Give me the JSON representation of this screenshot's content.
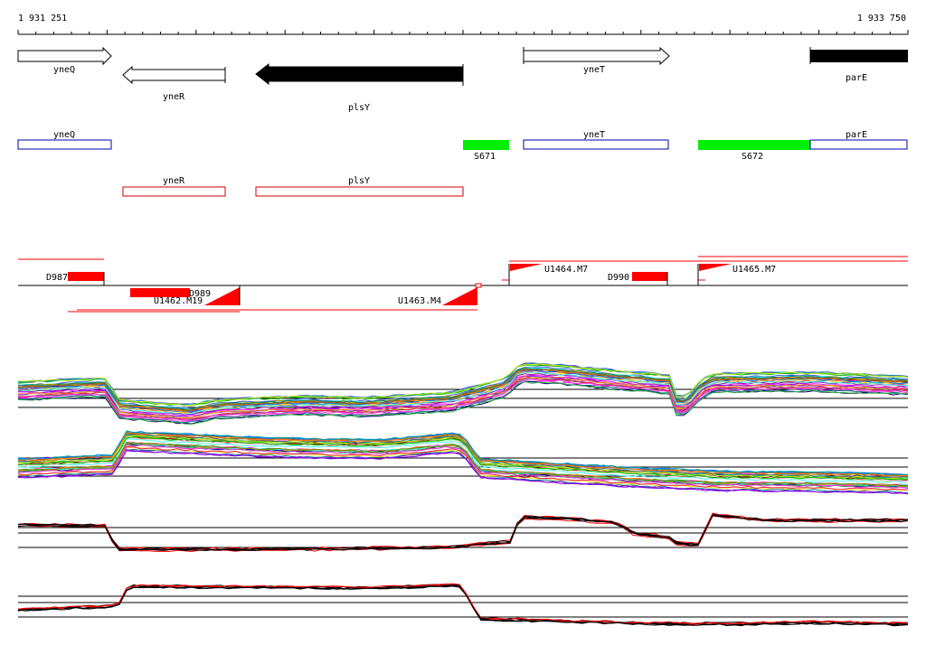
{
  "ruler": {
    "start_label": "1 931 251",
    "end_label": "1 933 750"
  },
  "genes": {
    "yneQ": "yneQ",
    "yneR": "yneR",
    "plsY": "plsY",
    "yneT": "yneT",
    "parE": "parE"
  },
  "segments": {
    "s671": "S671",
    "s672": "S672"
  },
  "transcripts": {
    "d987": "D987",
    "d989": "D989",
    "d990": "D990",
    "u1462": "U1462.M19",
    "u1463": "U1463.M4",
    "u1464": "U1464.M7",
    "u1465": "U1465.M7"
  },
  "colors": {
    "feature_black": "#000000",
    "segment_green": "#00ee00",
    "transcript_red": "#ff0000",
    "annotation_blue": "#0000aa",
    "annotation_red": "#cc0000"
  },
  "icons": {
    "forward_arrow": "right-arrow-icon",
    "reverse_arrow": "left-arrow-icon",
    "promoter_flag": "promoter-flag-icon"
  }
}
